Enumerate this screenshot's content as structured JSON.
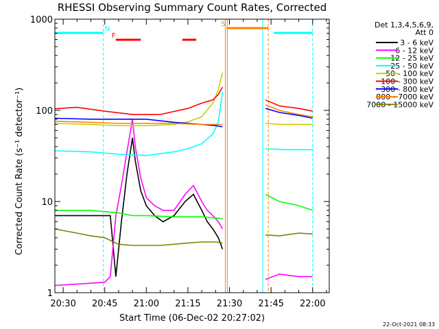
{
  "chart_data": {
    "type": "line",
    "title": "RHESSI Observing Summary Count Rates, Corrected",
    "xlabel": "Start Time (06-Dec-02 20:27:02)",
    "ylabel": "Corrected Count Rate (s⁻¹ detector⁻¹)",
    "y_scale": "log",
    "ylim": [
      1,
      1000
    ],
    "xlim_minutes_after_2030": [
      -3,
      96
    ],
    "x_tick_minutes": [
      0,
      15,
      30,
      45,
      60,
      75,
      90
    ],
    "x_tick_labels": [
      "20:30",
      "20:45",
      "21:00",
      "21:15",
      "21:30",
      "21:45",
      "22:00"
    ],
    "y_tick_values": [
      1,
      10,
      100,
      1000
    ],
    "y_tick_labels": [
      "1",
      "10",
      "100",
      "1000"
    ],
    "legend_header": [
      "Det 1,3,4,5,6,9,",
      "Att 0"
    ],
    "timestamp": "22-Oct-2021 08:33",
    "series": [
      {
        "name": "3 - 6 keV",
        "color": "#000000",
        "x": [
          -3,
          5,
          12,
          17,
          19,
          21,
          23,
          25,
          26,
          28,
          30,
          33,
          36,
          40,
          44,
          47,
          50,
          52,
          54,
          56,
          57.5
        ],
        "values": [
          7,
          7,
          7,
          7,
          1.5,
          6,
          20,
          50,
          28,
          13,
          9,
          7,
          6,
          7,
          10,
          12,
          8,
          6,
          5,
          4,
          3
        ]
      },
      {
        "name": "6 - 12 keV",
        "color": "#ff00ff",
        "x": [
          -3,
          15,
          17,
          19,
          21,
          23,
          25,
          26,
          28,
          30,
          33,
          36,
          40,
          44,
          47,
          50,
          52,
          54,
          56,
          57.5
        ],
        "values": [
          1.2,
          1.3,
          1.5,
          7,
          15,
          35,
          80,
          40,
          18,
          11,
          9,
          8,
          8,
          12,
          15,
          10,
          8,
          7,
          6,
          5
        ]
      },
      {
        "name": "12 - 25 keV",
        "color": "#00ff00",
        "x": [
          -3,
          10,
          20,
          25,
          30,
          40,
          50,
          57.5
        ],
        "values": [
          8,
          8,
          7.5,
          7,
          7,
          6.8,
          6.8,
          6.5
        ]
      },
      {
        "name": "25 - 50 keV",
        "color": "#00ffff",
        "x": [
          -3,
          10,
          20,
          30,
          40,
          45,
          50,
          54,
          56,
          57.5
        ],
        "values": [
          36,
          35,
          33,
          32,
          35,
          38,
          43,
          55,
          75,
          160
        ]
      },
      {
        "name": "50 - 100 keV",
        "color": "#cccc00",
        "x": [
          -3,
          10,
          20,
          30,
          40,
          45,
          50,
          54,
          56,
          57.5
        ],
        "values": [
          72,
          70,
          68,
          68,
          70,
          75,
          85,
          120,
          170,
          260
        ]
      },
      {
        "name": "100 - 300 keV",
        "color": "#ff0000",
        "x": [
          -3,
          5,
          15,
          25,
          35,
          45,
          50,
          54,
          56,
          57.5
        ],
        "values": [
          104,
          108,
          98,
          90,
          90,
          105,
          120,
          130,
          150,
          180
        ]
      },
      {
        "name": "300 - 800 keV",
        "color": "#0000ff",
        "x": [
          -3,
          10,
          20,
          30,
          40,
          50,
          55,
          57.5
        ],
        "values": [
          82,
          80,
          80,
          80,
          74,
          70,
          68,
          66
        ]
      },
      {
        "name": "800 - 7000 keV",
        "color": "#ff8000",
        "x": [
          -3,
          10,
          20,
          30,
          40,
          50,
          55,
          57.5
        ],
        "values": [
          76,
          74,
          72,
          72,
          72,
          70,
          70,
          70
        ]
      },
      {
        "name": "7000 - 15000 keV",
        "color": "#808000",
        "x": [
          -3,
          5,
          10,
          15,
          20,
          25,
          30,
          35,
          40,
          45,
          50,
          55,
          57.5
        ],
        "values": [
          5,
          4.5,
          4.2,
          4,
          3.4,
          3.3,
          3.3,
          3.3,
          3.4,
          3.5,
          3.6,
          3.6,
          3.5
        ]
      }
    ],
    "post_gap_series": [
      {
        "name": "100 - 300 keV",
        "color": "#ff0000",
        "x": [
          73,
          78,
          85,
          90
        ],
        "values": [
          130,
          112,
          105,
          98
        ]
      },
      {
        "name": "800 - 7000 keV",
        "color": "#ff8000",
        "x": [
          73,
          78,
          85,
          90
        ],
        "values": [
          115,
          100,
          90,
          85
        ]
      },
      {
        "name": "300 - 800 keV",
        "color": "#0000ff",
        "x": [
          73,
          78,
          85,
          90
        ],
        "values": [
          105,
          95,
          88,
          82
        ]
      },
      {
        "name": "50 - 100 keV",
        "color": "#cccc00",
        "x": [
          73,
          78,
          85,
          90
        ],
        "values": [
          72,
          70,
          70,
          70
        ]
      },
      {
        "name": "25 - 50 keV",
        "color": "#00ffff",
        "x": [
          73,
          80,
          90
        ],
        "values": [
          38,
          37,
          37
        ]
      },
      {
        "name": "12 - 25 keV",
        "color": "#00ff00",
        "x": [
          73,
          78,
          85,
          90
        ],
        "values": [
          12,
          10,
          9,
          8
        ]
      },
      {
        "name": "7000 - 15000 keV",
        "color": "#808000",
        "x": [
          73,
          78,
          85,
          90
        ],
        "values": [
          4.3,
          4.2,
          4.5,
          4.4
        ]
      },
      {
        "name": "6 - 12 keV",
        "color": "#ff00ff",
        "x": [
          73,
          78,
          85,
          90
        ],
        "values": [
          1.4,
          1.6,
          1.5,
          1.5
        ]
      }
    ],
    "flag_bars": [
      {
        "label": "N",
        "color": "#00ffff",
        "segments": [
          [
            -3,
            14.5
          ],
          [
            76,
            90
          ]
        ],
        "label_at": 14.5
      },
      {
        "label": "F",
        "color": "#ff0000",
        "segments": [
          [
            19,
            28
          ],
          [
            43,
            48
          ]
        ],
        "label_at": 17
      },
      {
        "label": "S",
        "color": "#ff8000",
        "segments": [
          [
            59,
            74
          ]
        ],
        "label_at": 56.5
      }
    ],
    "vertical_lines": [
      {
        "x": 14.5,
        "color": "#00ffff",
        "style": "dashed"
      },
      {
        "x": 58.5,
        "color": "#ff8000",
        "style": "solid"
      },
      {
        "x": 59.2,
        "color": "#ff8000",
        "style": "solid"
      },
      {
        "x": 72,
        "color": "#00ffff",
        "style": "solid"
      },
      {
        "x": 74,
        "color": "#ff8000",
        "style": "dashed"
      },
      {
        "x": 90,
        "color": "#00ffff",
        "style": "dashed"
      }
    ]
  }
}
